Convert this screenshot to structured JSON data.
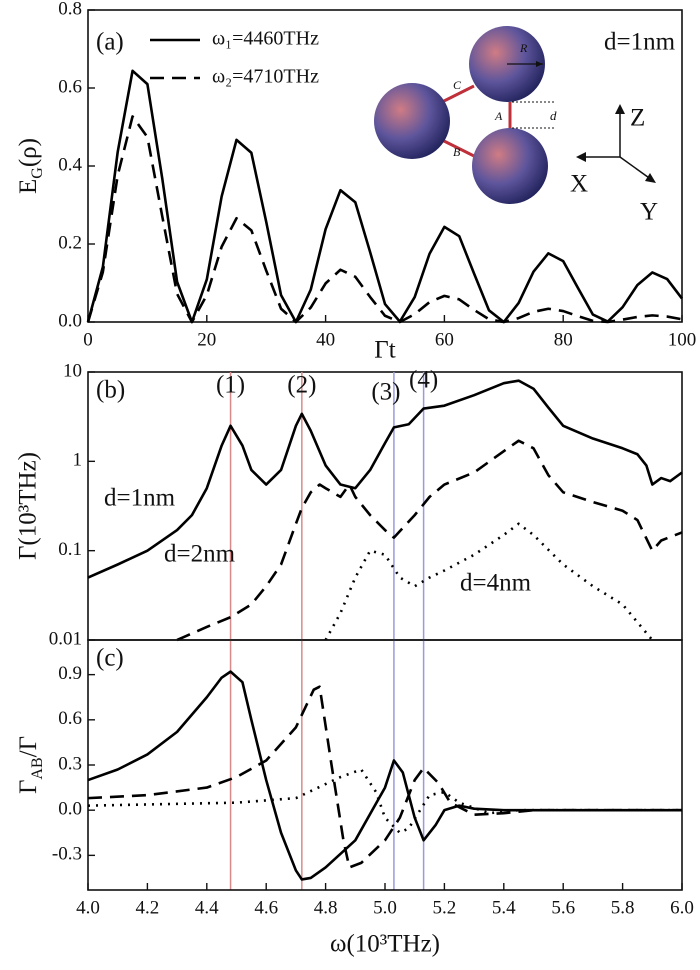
{
  "chart_data": [
    {
      "type": "line",
      "panel_label": "(a)",
      "xlabel": "Γt",
      "ylabel": [
        "E",
        "G",
        "(ρ)"
      ],
      "xlim": [
        0,
        100
      ],
      "ylim": [
        0,
        0.8
      ],
      "xticks": [
        0,
        20,
        40,
        60,
        80,
        100
      ],
      "yticks": [
        {
          "value": 0,
          "label": "0.0"
        },
        0.2,
        0.4,
        0.6,
        0.8
      ],
      "legend": "upper left",
      "x": [
        0,
        2.5,
        5,
        7.5,
        10,
        12.5,
        15,
        17.5,
        20,
        22.5,
        25,
        27.5,
        30,
        32.5,
        35,
        37.5,
        40,
        42.5,
        45,
        47.5,
        50,
        52.5,
        55,
        57.5,
        60,
        62.5,
        65,
        67.5,
        70,
        72.5,
        75,
        77.5,
        80,
        82.5,
        85,
        87.5,
        90,
        92.5,
        95,
        97.5,
        100
      ],
      "series": [
        {
          "name": "ω₁=4460THz",
          "color": "#000000",
          "style": "solid",
          "values": [
            0,
            0.141,
            0.436,
            0.644,
            0.61,
            0.368,
            0.103,
            0,
            0.109,
            0.322,
            0.467,
            0.434,
            0.257,
            0.069,
            0,
            0.083,
            0.238,
            0.338,
            0.307,
            0.179,
            0.046,
            0.001,
            0.064,
            0.175,
            0.244,
            0.22,
            0.124,
            0.03,
            0,
            0.049,
            0.129,
            0.176,
            0.156,
            0.087,
            0.019,
            0.001,
            0.038,
            0.095,
            0.127,
            0.11,
            0.06
          ]
        },
        {
          "name": "ω₂=4710THz",
          "color": "#000000",
          "style": "dashed",
          "values": [
            0,
            0.128,
            0.376,
            0.527,
            0.474,
            0.271,
            0.072,
            0,
            0.069,
            0.193,
            0.266,
            0.235,
            0.132,
            0.034,
            0,
            0.037,
            0.099,
            0.134,
            0.116,
            0.064,
            0.016,
            0,
            0.02,
            0.051,
            0.067,
            0.058,
            0.031,
            0.007,
            0,
            0.01,
            0.026,
            0.034,
            0.028,
            0.015,
            0.003,
            0,
            0.006,
            0.013,
            0.017,
            0.014,
            0.007
          ]
        }
      ],
      "inset": {
        "sphere_labels": [
          "R",
          "C",
          "A",
          "B"
        ],
        "gap_label": "d",
        "axes": [
          "Z",
          "X",
          "Y"
        ],
        "note": "d=1nm"
      }
    },
    {
      "type": "line",
      "panel_label": "(b)",
      "ylabel": "Γ(10³THz)",
      "log_y": true,
      "xlim": [
        4.0,
        6.0
      ],
      "ylim": [
        0.01,
        10
      ],
      "yticks": [
        0.01,
        0.1,
        1,
        10
      ],
      "series": [
        {
          "name": "d=1nm",
          "color": "#000000",
          "style": "solid",
          "x": [
            4.0,
            4.1,
            4.2,
            4.3,
            4.35,
            4.4,
            4.45,
            4.48,
            4.52,
            4.55,
            4.6,
            4.65,
            4.7,
            4.72,
            4.75,
            4.8,
            4.85,
            4.9,
            4.95,
            5.0,
            5.03,
            5.08,
            5.13,
            5.2,
            5.3,
            5.4,
            5.45,
            5.5,
            5.55,
            5.6,
            5.7,
            5.8,
            5.85,
            5.88,
            5.9,
            5.93,
            5.96,
            6.0
          ],
          "values": [
            0.05,
            0.07,
            0.1,
            0.17,
            0.25,
            0.5,
            1.5,
            2.5,
            1.5,
            0.8,
            0.55,
            0.8,
            2.5,
            3.4,
            2.2,
            0.9,
            0.55,
            0.5,
            0.8,
            1.6,
            2.4,
            2.6,
            3.9,
            4.2,
            5.5,
            7.5,
            8,
            6.5,
            4,
            2.5,
            1.8,
            1.4,
            1.2,
            0.9,
            0.55,
            0.65,
            0.6,
            0.75
          ]
        },
        {
          "name": "d=2nm",
          "color": "#000000",
          "style": "dashed",
          "x": [
            4.3,
            4.4,
            4.48,
            4.55,
            4.6,
            4.65,
            4.7,
            4.72,
            4.75,
            4.78,
            4.8,
            4.85,
            4.88,
            4.9,
            4.95,
            5.0,
            5.03,
            5.1,
            5.15,
            5.2,
            5.3,
            5.4,
            5.45,
            5.5,
            5.55,
            5.6,
            5.7,
            5.8,
            5.85,
            5.9,
            5.93,
            6.0
          ],
          "values": [
            0.01,
            0.014,
            0.018,
            0.025,
            0.04,
            0.07,
            0.2,
            0.3,
            0.45,
            0.55,
            0.5,
            0.4,
            0.55,
            0.4,
            0.25,
            0.17,
            0.14,
            0.25,
            0.4,
            0.55,
            0.75,
            1.3,
            1.7,
            1.4,
            0.7,
            0.45,
            0.35,
            0.28,
            0.22,
            0.1,
            0.13,
            0.16
          ]
        },
        {
          "name": "d=4nm",
          "color": "#000000",
          "style": "dotted",
          "x": [
            4.8,
            4.85,
            4.9,
            4.95,
            5.0,
            5.05,
            5.1,
            5.15,
            5.2,
            5.3,
            5.4,
            5.45,
            5.5,
            5.6,
            5.7,
            5.8,
            5.88,
            5.9
          ],
          "values": [
            0.01,
            0.02,
            0.05,
            0.1,
            0.09,
            0.05,
            0.04,
            0.05,
            0.06,
            0.09,
            0.15,
            0.2,
            0.15,
            0.07,
            0.04,
            0.025,
            0.012,
            0.01
          ]
        }
      ],
      "markers": [
        {
          "label": "(1)",
          "x": 4.48,
          "color": "#d98a8a"
        },
        {
          "label": "(2)",
          "x": 4.72,
          "color": "#d98a8a"
        },
        {
          "label": "(3)",
          "x": 5.03,
          "color": "#9a9ae0"
        },
        {
          "label": "(4)",
          "x": 5.13,
          "color": "#9a9ae0"
        }
      ]
    },
    {
      "type": "line",
      "panel_label": "(c)",
      "xlabel": "ω(10³THz)",
      "ylabel": [
        "Γ",
        "AB",
        "/Γ"
      ],
      "xlim": [
        4.0,
        6.0
      ],
      "ylim": [
        -0.53,
        1.13
      ],
      "xticks": [
        {
          "value": 4,
          "label": "4.0"
        },
        4.2,
        4.4,
        4.6,
        4.8,
        {
          "value": 5,
          "label": "5.0"
        },
        5.2,
        5.4,
        5.6,
        5.8,
        {
          "value": 6,
          "label": "6.0"
        }
      ],
      "yticks": [
        -0.3,
        {
          "value": 0,
          "label": "0.0"
        },
        0.3,
        0.6,
        0.9
      ],
      "series": [
        {
          "color": "#000000",
          "style": "solid",
          "x": [
            4.0,
            4.1,
            4.2,
            4.3,
            4.4,
            4.45,
            4.48,
            4.52,
            4.55,
            4.6,
            4.65,
            4.7,
            4.72,
            4.75,
            4.8,
            4.9,
            5.0,
            5.03,
            5.06,
            5.1,
            5.13,
            5.17,
            5.2,
            5.25,
            5.3,
            5.4,
            6.0
          ],
          "values": [
            0.2,
            0.27,
            0.37,
            0.52,
            0.75,
            0.88,
            0.92,
            0.85,
            0.6,
            0.2,
            -0.15,
            -0.4,
            -0.46,
            -0.45,
            -0.38,
            -0.2,
            0.15,
            0.33,
            0.25,
            -0.05,
            -0.2,
            -0.1,
            0,
            0.03,
            0.01,
            0,
            0
          ]
        },
        {
          "color": "#000000",
          "style": "dashed",
          "x": [
            4.0,
            4.2,
            4.4,
            4.5,
            4.6,
            4.7,
            4.76,
            4.78,
            4.82,
            4.86,
            4.88,
            4.92,
            5.0,
            5.05,
            5.1,
            5.13,
            5.18,
            5.22,
            5.3,
            5.4,
            5.5,
            6.0
          ],
          "values": [
            0.08,
            0.1,
            0.15,
            0.22,
            0.33,
            0.55,
            0.8,
            0.82,
            0.3,
            -0.2,
            -0.38,
            -0.35,
            -0.2,
            -0.05,
            0.2,
            0.28,
            0.18,
            0.05,
            -0.03,
            -0.02,
            0,
            0
          ]
        },
        {
          "color": "#000000",
          "style": "dotted",
          "x": [
            4.0,
            4.5,
            4.7,
            4.85,
            4.92,
            4.97,
            5.0,
            5.05,
            5.08,
            5.15,
            5.2,
            5.25,
            5.35,
            5.45,
            6.0
          ],
          "values": [
            0.03,
            0.05,
            0.08,
            0.22,
            0.27,
            0.12,
            -0.05,
            -0.15,
            -0.12,
            0.1,
            0.12,
            0.05,
            -0.02,
            0,
            0
          ]
        }
      ]
    }
  ]
}
